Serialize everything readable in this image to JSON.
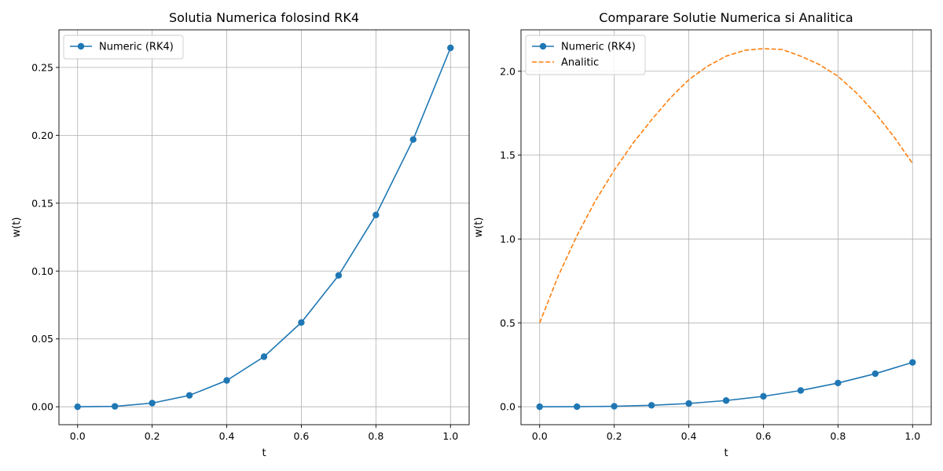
{
  "chart_data": [
    {
      "type": "line",
      "title": "Solutia Numerica folosind RK4",
      "xlabel": "t",
      "ylabel": "w(t)",
      "xlim": [
        -0.05,
        1.05
      ],
      "ylim": [
        -0.0132,
        0.2777
      ],
      "xticks": [
        "0.0",
        "0.2",
        "0.4",
        "0.6",
        "0.8",
        "1.0"
      ],
      "xtick_values": [
        0,
        0.2,
        0.4,
        0.6,
        0.8,
        1.0
      ],
      "yticks": [
        "0.00",
        "0.05",
        "0.10",
        "0.15",
        "0.20",
        "0.25"
      ],
      "ytick_values": [
        0,
        0.05,
        0.1,
        0.15,
        0.2,
        0.25
      ],
      "grid": true,
      "legend": "top-left",
      "series": [
        {
          "name": "Numeric (RK4)",
          "style": "line-marker",
          "color": "#1f77b4",
          "x": [
            0.0,
            0.1,
            0.2,
            0.3,
            0.4,
            0.5,
            0.6,
            0.7,
            0.8,
            0.9,
            1.0
          ],
          "y": [
            0.0,
            0.0003,
            0.0027,
            0.0084,
            0.0194,
            0.0369,
            0.0621,
            0.0968,
            0.1413,
            0.1969,
            0.2644
          ]
        }
      ]
    },
    {
      "type": "line",
      "title": "Comparare Solutie Numerica si Analitica",
      "xlabel": "t",
      "ylabel": "w(t)",
      "xlim": [
        -0.05,
        1.05
      ],
      "ylim": [
        -0.107,
        2.247
      ],
      "xticks": [
        "0.0",
        "0.2",
        "0.4",
        "0.6",
        "0.8",
        "1.0"
      ],
      "xtick_values": [
        0,
        0.2,
        0.4,
        0.6,
        0.8,
        1.0
      ],
      "yticks": [
        "0.0",
        "0.5",
        "1.0",
        "1.5",
        "2.0"
      ],
      "ytick_values": [
        0,
        0.5,
        1.0,
        1.5,
        2.0
      ],
      "grid": true,
      "legend": "top-left",
      "series": [
        {
          "name": "Numeric (RK4)",
          "style": "line-marker",
          "color": "#1f77b4",
          "x": [
            0.0,
            0.1,
            0.2,
            0.3,
            0.4,
            0.5,
            0.6,
            0.7,
            0.8,
            0.9,
            1.0
          ],
          "y": [
            0.0,
            0.0003,
            0.0027,
            0.0084,
            0.0194,
            0.0369,
            0.0621,
            0.0968,
            0.1413,
            0.1969,
            0.2644
          ]
        },
        {
          "name": "Analitic",
          "style": "dashed",
          "color": "#ff7f0e",
          "x": [
            0.0,
            0.05,
            0.1,
            0.15,
            0.2,
            0.25,
            0.3,
            0.35,
            0.4,
            0.45,
            0.5,
            0.55,
            0.6,
            0.65,
            0.7,
            0.75,
            0.8,
            0.85,
            0.9,
            0.95,
            1.0
          ],
          "y": [
            0.5,
            0.78,
            1.02,
            1.23,
            1.41,
            1.57,
            1.71,
            1.84,
            1.95,
            2.03,
            2.09,
            2.125,
            2.135,
            2.13,
            2.09,
            2.04,
            1.97,
            1.87,
            1.75,
            1.61,
            1.45
          ]
        }
      ]
    }
  ]
}
